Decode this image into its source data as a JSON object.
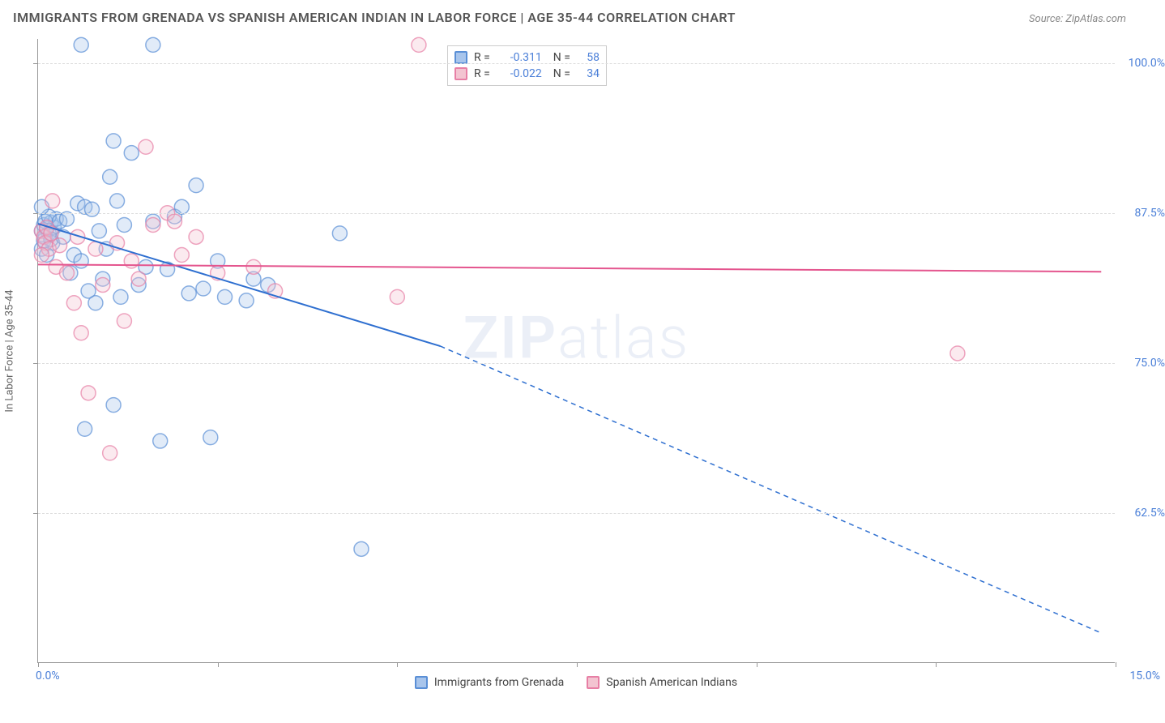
{
  "title": "IMMIGRANTS FROM GRENADA VS SPANISH AMERICAN INDIAN IN LABOR FORCE | AGE 35-44 CORRELATION CHART",
  "source": "Source: ZipAtlas.com",
  "watermark_bold": "ZIP",
  "watermark_light": "atlas",
  "chart": {
    "type": "scatter",
    "ylabel": "In Labor Force | Age 35-44",
    "x_min": 0.0,
    "x_max": 15.0,
    "y_min": 50.0,
    "y_max": 102.0,
    "x_tick_major_count": 7,
    "y_gridlines": [
      62.5,
      75.0,
      87.5,
      100.0
    ],
    "y_tick_labels": [
      "62.5%",
      "75.0%",
      "87.5%",
      "100.0%"
    ],
    "x_left_label": "0.0%",
    "x_right_label": "15.0%",
    "background_color": "#ffffff",
    "grid_color": "#dddddd",
    "axis_color": "#999999",
    "marker_radius": 9,
    "marker_opacity": 0.35,
    "line_width": 2,
    "series": [
      {
        "name": "Immigrants from Grenada",
        "color_fill": "#a8c5ec",
        "color_stroke": "#5a8fd6",
        "line_color": "#2e6fd0",
        "r": "-0.311",
        "n": "58",
        "regression": {
          "x1": 0.0,
          "y1": 86.6,
          "x2_solid": 5.6,
          "y2_solid": 76.4,
          "x2_dash": 14.8,
          "y2_dash": 52.5
        },
        "points": [
          [
            0.05,
            86.0
          ],
          [
            0.08,
            86.5
          ],
          [
            0.1,
            85.5
          ],
          [
            0.12,
            86.2
          ],
          [
            0.15,
            85.8
          ],
          [
            0.18,
            86.7
          ],
          [
            0.2,
            85.0
          ],
          [
            0.22,
            86.3
          ],
          [
            0.25,
            87.0
          ],
          [
            0.05,
            84.5
          ],
          [
            0.08,
            85.2
          ],
          [
            0.1,
            86.8
          ],
          [
            0.12,
            84.0
          ],
          [
            0.15,
            87.2
          ],
          [
            0.18,
            85.3
          ],
          [
            0.05,
            88.0
          ],
          [
            0.3,
            86.8
          ],
          [
            0.35,
            85.5
          ],
          [
            0.4,
            87.0
          ],
          [
            0.45,
            82.5
          ],
          [
            0.5,
            84.0
          ],
          [
            0.55,
            88.3
          ],
          [
            0.6,
            83.5
          ],
          [
            0.65,
            88.0
          ],
          [
            0.7,
            81.0
          ],
          [
            0.75,
            87.8
          ],
          [
            0.8,
            80.0
          ],
          [
            0.85,
            86.0
          ],
          [
            0.9,
            82.0
          ],
          [
            0.95,
            84.5
          ],
          [
            1.0,
            90.5
          ],
          [
            1.05,
            93.5
          ],
          [
            1.1,
            88.5
          ],
          [
            1.15,
            80.5
          ],
          [
            1.2,
            86.5
          ],
          [
            1.3,
            92.5
          ],
          [
            1.4,
            81.5
          ],
          [
            1.5,
            83.0
          ],
          [
            1.6,
            86.8
          ],
          [
            1.7,
            68.5
          ],
          [
            1.8,
            82.8
          ],
          [
            1.9,
            87.2
          ],
          [
            2.0,
            88.0
          ],
          [
            2.1,
            80.8
          ],
          [
            2.2,
            89.8
          ],
          [
            2.3,
            81.2
          ],
          [
            2.4,
            68.8
          ],
          [
            2.5,
            83.5
          ],
          [
            0.6,
            101.5
          ],
          [
            1.6,
            101.5
          ],
          [
            1.05,
            71.5
          ],
          [
            0.65,
            69.5
          ],
          [
            2.9,
            80.2
          ],
          [
            3.0,
            82.0
          ],
          [
            3.2,
            81.5
          ],
          [
            4.2,
            85.8
          ],
          [
            4.5,
            59.5
          ],
          [
            2.6,
            80.5
          ]
        ]
      },
      {
        "name": "Spanish American Indians",
        "color_fill": "#f3c4d1",
        "color_stroke": "#e77fa5",
        "line_color": "#e4558e",
        "r": "-0.022",
        "n": "34",
        "regression": {
          "x1": 0.0,
          "y1": 83.2,
          "x2_solid": 14.8,
          "y2_solid": 82.6,
          "x2_dash": 14.8,
          "y2_dash": 82.6
        },
        "points": [
          [
            0.05,
            86.0
          ],
          [
            0.08,
            85.5
          ],
          [
            0.1,
            85.0
          ],
          [
            0.12,
            86.3
          ],
          [
            0.15,
            84.5
          ],
          [
            0.18,
            85.8
          ],
          [
            0.05,
            84.0
          ],
          [
            0.2,
            88.5
          ],
          [
            0.25,
            83.0
          ],
          [
            0.3,
            84.8
          ],
          [
            0.4,
            82.5
          ],
          [
            0.5,
            80.0
          ],
          [
            0.55,
            85.5
          ],
          [
            0.6,
            77.5
          ],
          [
            0.7,
            72.5
          ],
          [
            0.8,
            84.5
          ],
          [
            0.9,
            81.5
          ],
          [
            1.0,
            67.5
          ],
          [
            1.1,
            85.0
          ],
          [
            1.2,
            78.5
          ],
          [
            1.3,
            83.5
          ],
          [
            1.4,
            82.0
          ],
          [
            1.5,
            93.0
          ],
          [
            1.6,
            86.5
          ],
          [
            1.8,
            87.5
          ],
          [
            2.0,
            84.0
          ],
          [
            2.2,
            85.5
          ],
          [
            2.5,
            82.5
          ],
          [
            3.0,
            83.0
          ],
          [
            3.3,
            81.0
          ],
          [
            5.0,
            80.5
          ],
          [
            5.3,
            101.5
          ],
          [
            12.8,
            75.8
          ],
          [
            1.9,
            86.8
          ]
        ]
      }
    ],
    "stat_box": {
      "r_prefix": "R =",
      "n_prefix": "N ="
    },
    "bottom_legend": [
      {
        "label": "Immigrants from Grenada",
        "fill": "#a8c5ec",
        "stroke": "#5a8fd6"
      },
      {
        "label": "Spanish American Indians",
        "fill": "#f3c4d1",
        "stroke": "#e77fa5"
      }
    ]
  }
}
